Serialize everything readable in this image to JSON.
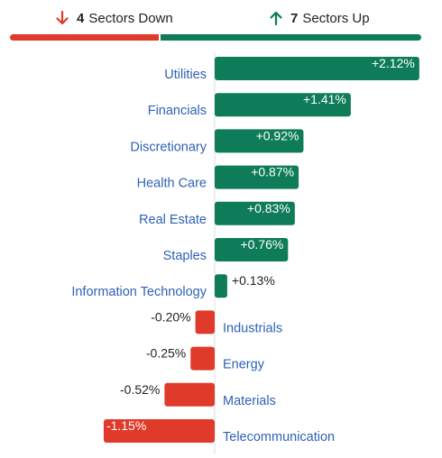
{
  "summary": {
    "down": {
      "count": "4",
      "label": "Sectors Down",
      "icon": "arrow-down-icon",
      "color": "#e03a2a"
    },
    "up": {
      "count": "7",
      "label": "Sectors Up",
      "icon": "arrow-up-icon",
      "color": "#0e7c58"
    }
  },
  "colors": {
    "positive": "#0e7c58",
    "negative": "#e03a2a",
    "label": "#2e62b5",
    "value_text": "#222222",
    "axis": "#dddddd"
  },
  "chart_data": {
    "type": "bar",
    "orientation": "horizontal",
    "categories": [
      "Utilities",
      "Financials",
      "Discretionary",
      "Health Care",
      "Real Estate",
      "Staples",
      "Information Technology",
      "Industrials",
      "Energy",
      "Materials",
      "Telecommunication"
    ],
    "values": [
      2.12,
      1.41,
      0.92,
      0.87,
      0.83,
      0.76,
      0.13,
      -0.2,
      -0.25,
      -0.52,
      -1.15
    ],
    "labels": [
      "+2.12%",
      "+1.41%",
      "+0.92%",
      "+0.87%",
      "+0.83%",
      "+0.76%",
      "+0.13%",
      "-0.20%",
      "-0.25%",
      "-0.52%",
      "-1.15%"
    ],
    "unit": "%",
    "xlim": [
      -1.15,
      2.12
    ],
    "grid": false,
    "legend": "none"
  }
}
